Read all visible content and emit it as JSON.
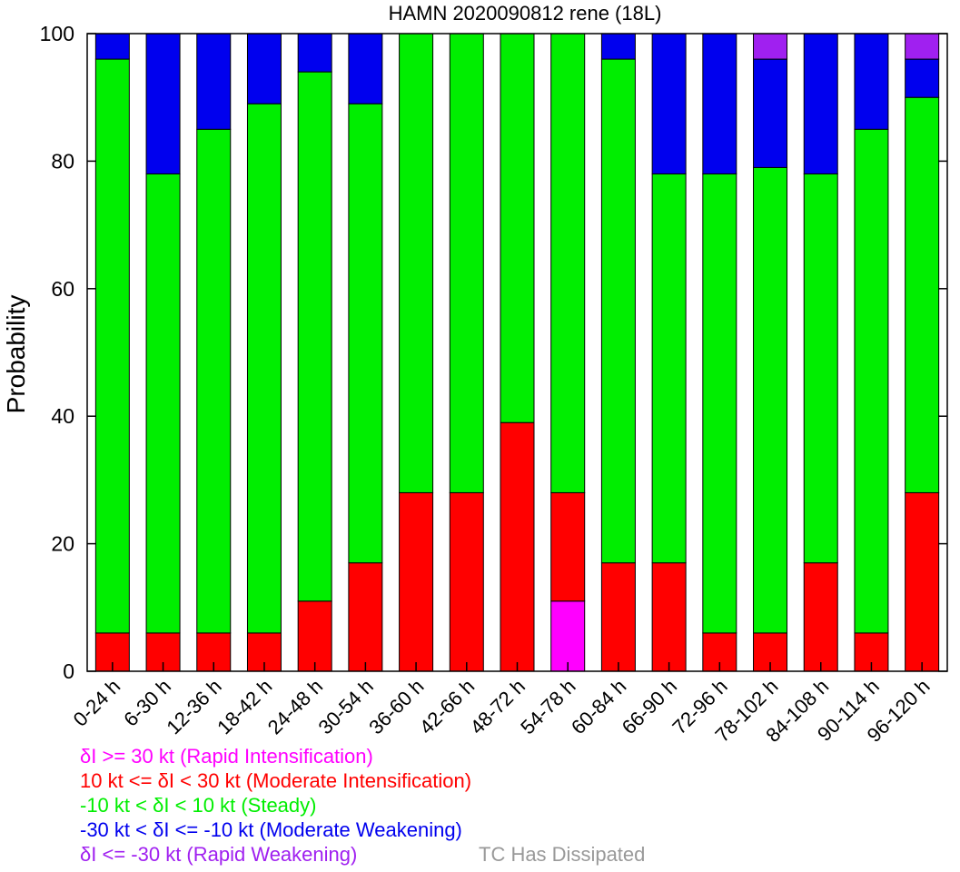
{
  "chart_data": {
    "type": "bar",
    "stacked": true,
    "title": "HAMN 2020090812 rene (18L)",
    "ylabel": "Probability",
    "xlabel": "",
    "ylim": [
      0,
      100
    ],
    "yticks": [
      0,
      20,
      40,
      60,
      80,
      100
    ],
    "categories": [
      "0-24 h",
      "6-30 h",
      "12-36 h",
      "18-42 h",
      "24-48 h",
      "30-54 h",
      "36-60 h",
      "42-66 h",
      "48-72 h",
      "54-78 h",
      "60-84 h",
      "66-90 h",
      "72-96 h",
      "78-102 h",
      "84-108 h",
      "90-114 h",
      "96-120 h"
    ],
    "series": [
      {
        "name": "δI >= 30 kt (Rapid Intensification)",
        "color": "#ff00ff",
        "values": [
          0,
          0,
          0,
          0,
          0,
          0,
          0,
          0,
          0,
          11,
          0,
          0,
          0,
          0,
          0,
          0,
          0
        ]
      },
      {
        "name": "10 kt <= δI < 30 kt (Moderate Intensification)",
        "color": "#ff0000",
        "values": [
          6,
          6,
          6,
          6,
          11,
          17,
          28,
          28,
          39,
          17,
          17,
          17,
          6,
          6,
          17,
          6,
          28
        ]
      },
      {
        "name": "-10 kt < δI < 10 kt (Steady)",
        "color": "#00ee00",
        "values": [
          90,
          72,
          79,
          83,
          83,
          72,
          72,
          72,
          61,
          72,
          79,
          61,
          72,
          73,
          61,
          79,
          62
        ]
      },
      {
        "name": "-30 kt < δI <= -10 kt (Moderate Weakening)",
        "color": "#0000ee",
        "values": [
          4,
          22,
          15,
          11,
          6,
          11,
          0,
          0,
          0,
          0,
          4,
          22,
          22,
          17,
          22,
          15,
          6
        ]
      },
      {
        "name": "δI <= -30 kt (Rapid Weakening)",
        "color": "#a020f0",
        "values": [
          0,
          0,
          0,
          0,
          0,
          0,
          0,
          0,
          0,
          0,
          0,
          0,
          0,
          4,
          0,
          0,
          4
        ]
      }
    ],
    "dissipated_label": "TC Has Dissipated",
    "dissipated_color": "#999999"
  }
}
